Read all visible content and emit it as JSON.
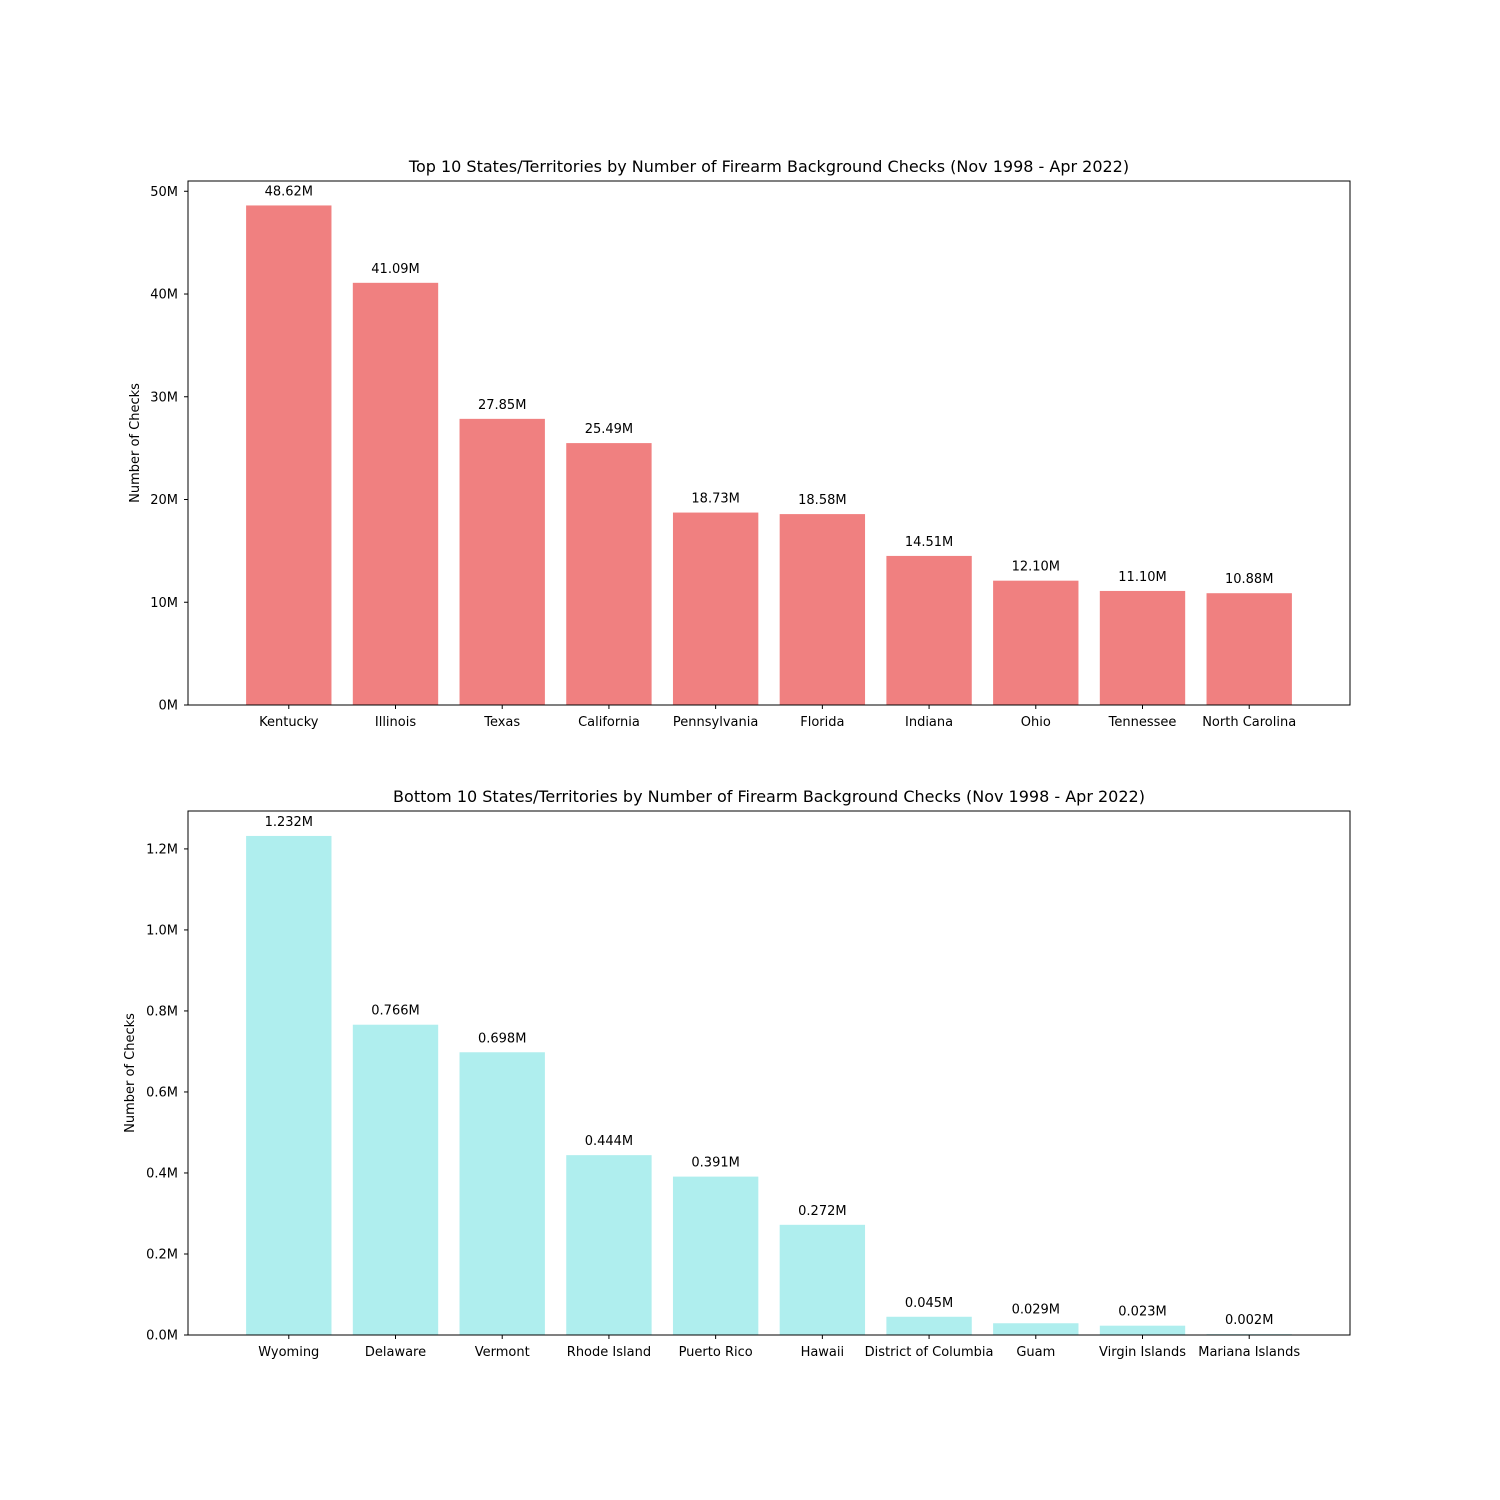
{
  "chart_data": [
    {
      "type": "bar",
      "title": "Top 10 States/Territories by Number of Firearm Background Checks (Nov 1998 - Apr 2022)",
      "xlabel": "",
      "ylabel": "Number of Checks",
      "ylim": [
        0,
        51
      ],
      "ytick_values": [
        0,
        10,
        20,
        30,
        40,
        50
      ],
      "ytick_labels": [
        "0M",
        "10M",
        "20M",
        "30M",
        "40M",
        "50M"
      ],
      "categories": [
        "Kentucky",
        "Illinois",
        "Texas",
        "California",
        "Pennsylvania",
        "Florida",
        "Indiana",
        "Ohio",
        "Tennessee",
        "North Carolina"
      ],
      "values": [
        48.62,
        41.09,
        27.85,
        25.49,
        18.73,
        18.58,
        14.51,
        12.1,
        11.1,
        10.88
      ],
      "value_labels": [
        "48.62M",
        "41.09M",
        "27.85M",
        "25.49M",
        "18.73M",
        "18.58M",
        "14.51M",
        "12.10M",
        "11.10M",
        "10.88M"
      ],
      "bar_color": "#f08080",
      "grid": false,
      "legend": "none"
    },
    {
      "type": "bar",
      "title": "Bottom 10 States/Territories by Number of Firearm Background Checks (Nov 1998 - Apr 2022)",
      "xlabel": "",
      "ylabel": "Number of Checks",
      "ylim": [
        0,
        1.2936
      ],
      "ytick_values": [
        0,
        0.2,
        0.4,
        0.6,
        0.8,
        1.0,
        1.2
      ],
      "ytick_labels": [
        "0.0M",
        "0.2M",
        "0.4M",
        "0.6M",
        "0.8M",
        "1.0M",
        "1.2M"
      ],
      "categories": [
        "Wyoming",
        "Delaware",
        "Vermont",
        "Rhode Island",
        "Puerto Rico",
        "Hawaii",
        "District of Columbia",
        "Guam",
        "Virgin Islands",
        "Mariana Islands"
      ],
      "values": [
        1.232,
        0.766,
        0.698,
        0.444,
        0.391,
        0.272,
        0.045,
        0.029,
        0.023,
        0.002
      ],
      "value_labels": [
        "1.232M",
        "0.766M",
        "0.698M",
        "0.444M",
        "0.391M",
        "0.272M",
        "0.045M",
        "0.029M",
        "0.023M",
        "0.002M"
      ],
      "bar_color": "#afeeee",
      "grid": false,
      "legend": "none"
    }
  ]
}
